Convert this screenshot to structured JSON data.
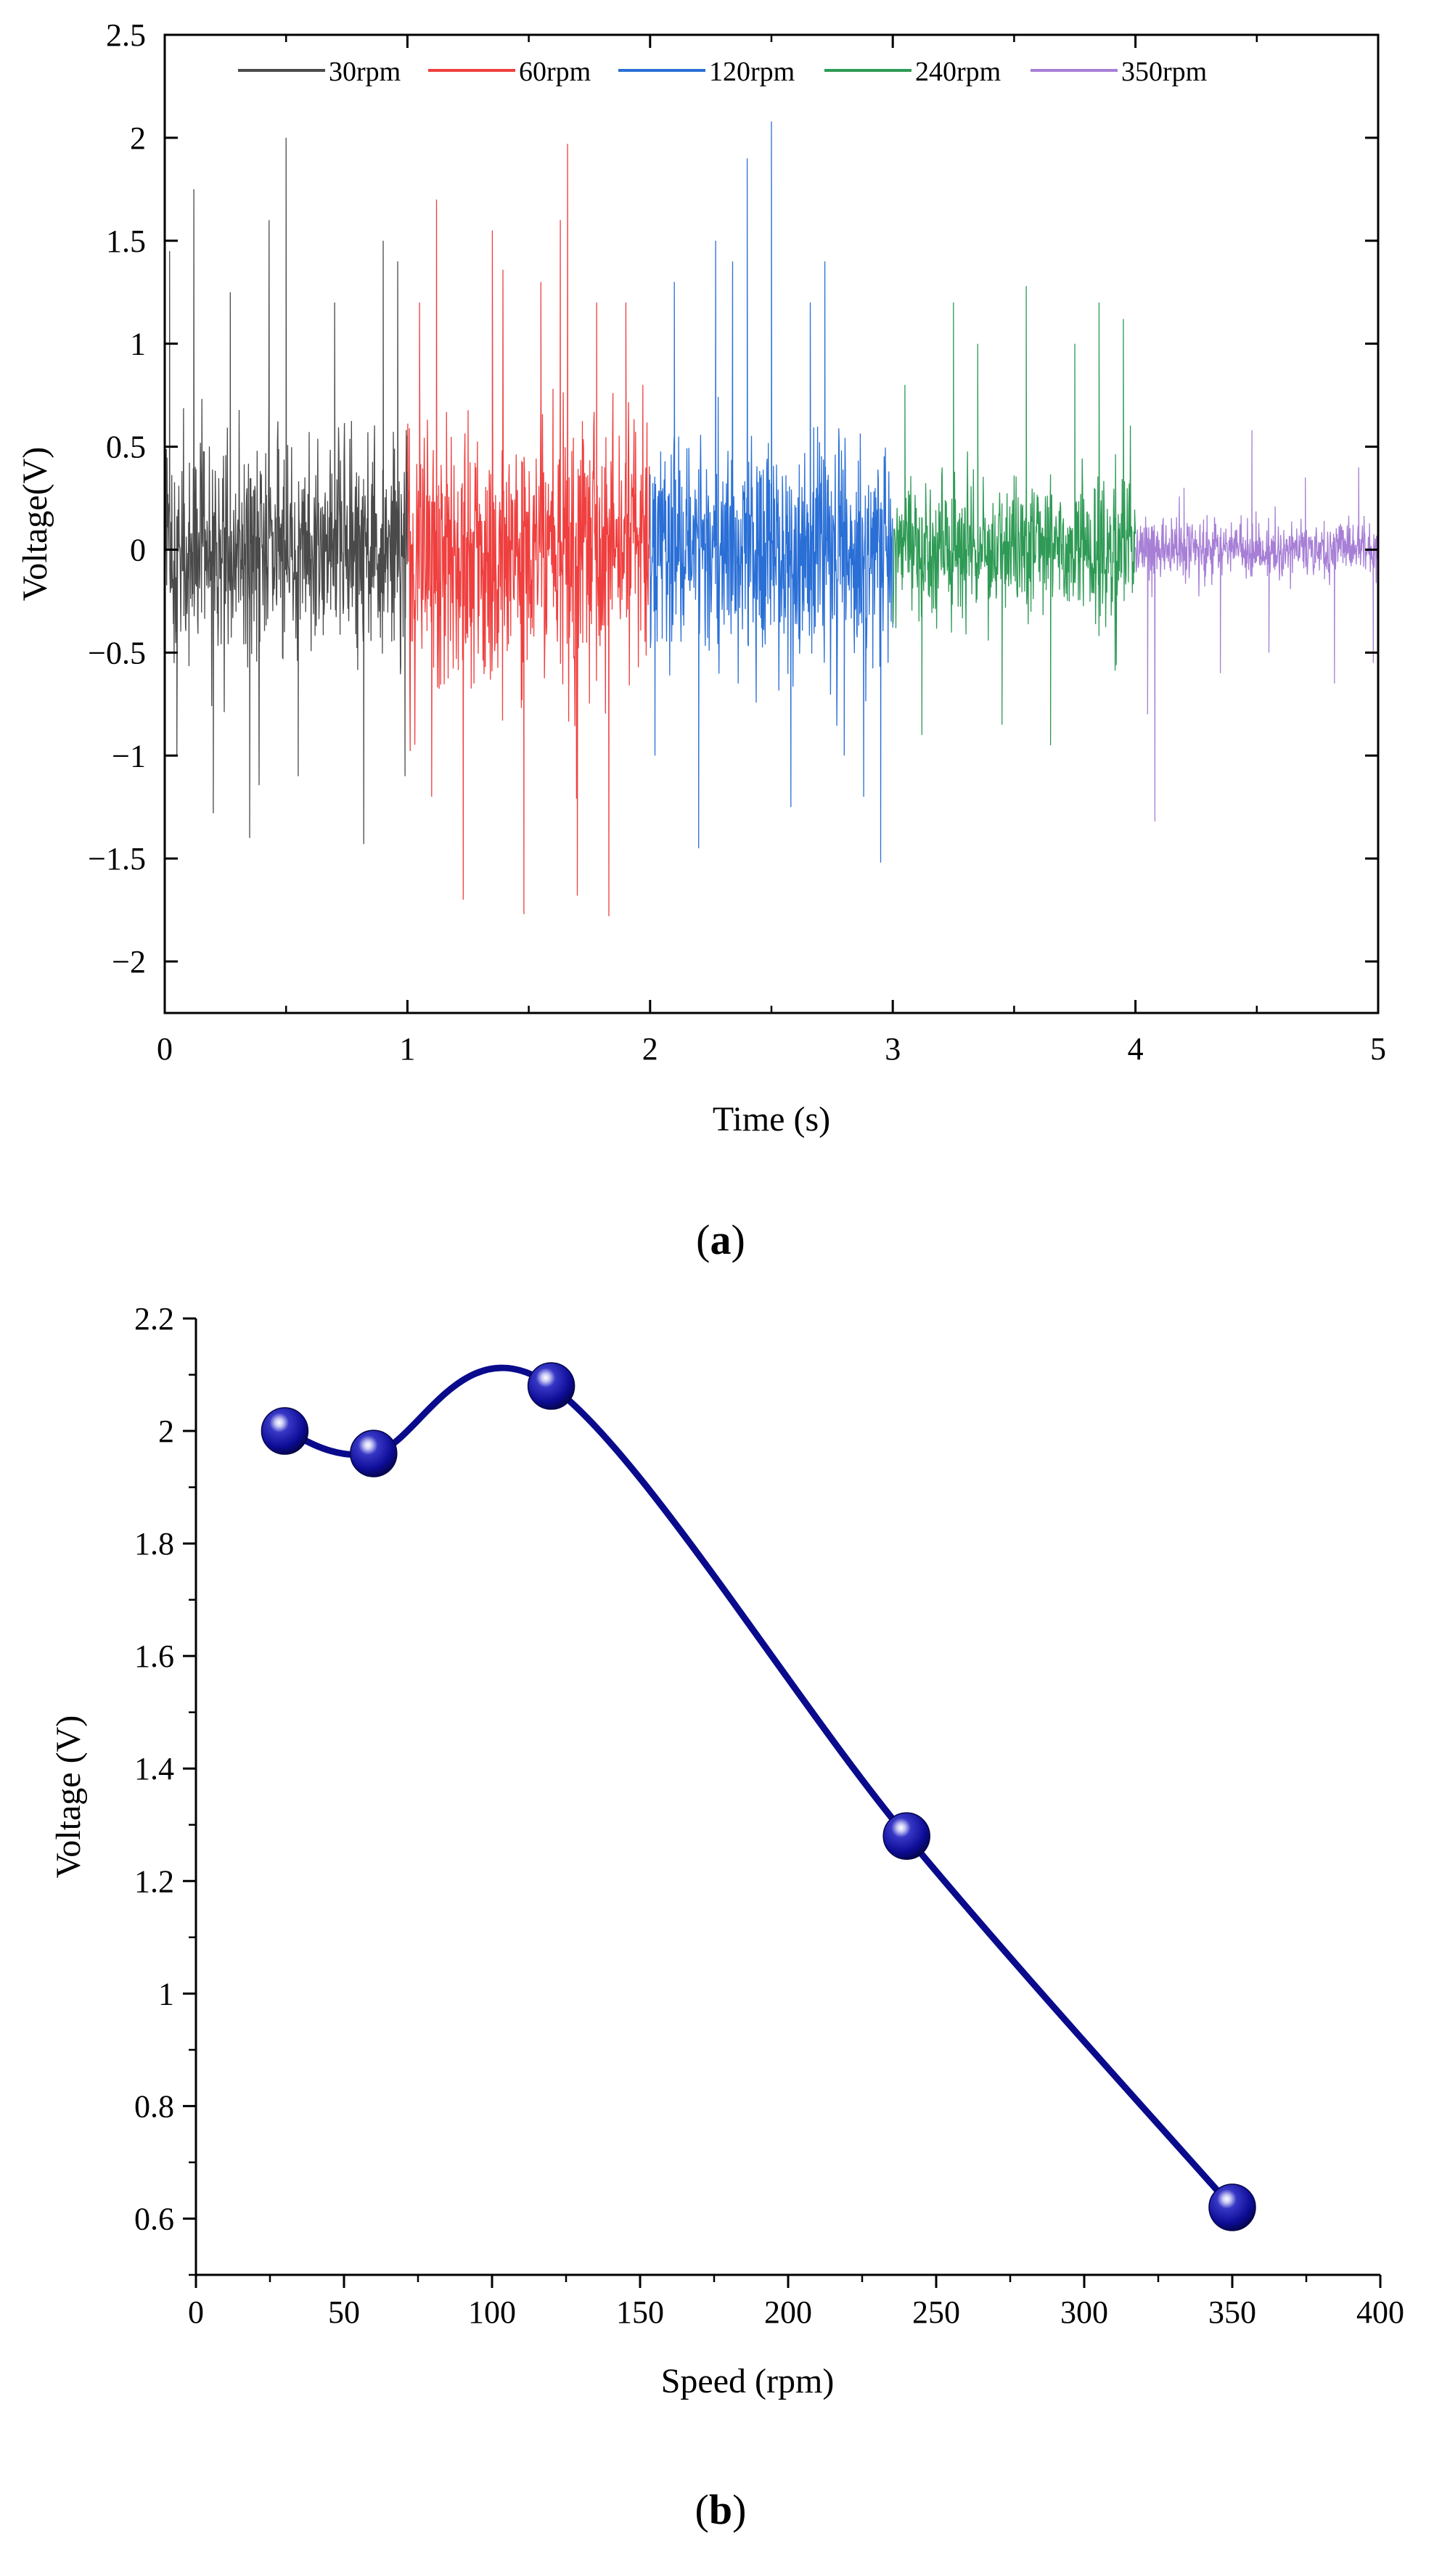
{
  "chart_data": [
    {
      "id": "a",
      "type": "line",
      "panel_label": "a",
      "title": "",
      "xlabel": "Time (s)",
      "ylabel": "Voltage(V)",
      "xlim": [
        0,
        5
      ],
      "ylim": [
        -2.25,
        2.5
      ],
      "xticks": [
        0,
        1,
        2,
        3,
        4,
        5
      ],
      "yticks": [
        -2,
        -1.5,
        -1,
        -0.5,
        0,
        0.5,
        1,
        1.5,
        2,
        2.5
      ],
      "legend_position": "top",
      "series": [
        {
          "name": "30rpm",
          "color": "#4a4a4a",
          "t_range": [
            0,
            1
          ],
          "envelope": {
            "typical_amplitude": 0.45,
            "min": -1.43,
            "max": 2.0
          },
          "peaks": [
            [
              0.02,
              1.45
            ],
            [
              0.05,
              -1.0
            ],
            [
              0.12,
              1.75
            ],
            [
              0.2,
              -1.28
            ],
            [
              0.27,
              1.25
            ],
            [
              0.35,
              -1.4
            ],
            [
              0.43,
              1.6
            ],
            [
              0.5,
              2.0
            ],
            [
              0.55,
              -1.1
            ],
            [
              0.7,
              1.2
            ],
            [
              0.82,
              -1.43
            ],
            [
              0.9,
              1.5
            ],
            [
              0.96,
              1.4
            ],
            [
              0.99,
              -1.1
            ]
          ]
        },
        {
          "name": "60rpm",
          "color": "#ef3f3f",
          "t_range": [
            1,
            2
          ],
          "envelope": {
            "typical_amplitude": 0.55,
            "min": -1.78,
            "max": 1.97
          },
          "peaks": [
            [
              1.05,
              1.2
            ],
            [
              1.1,
              -1.2
            ],
            [
              1.12,
              1.7
            ],
            [
              1.23,
              -1.7
            ],
            [
              1.35,
              1.55
            ],
            [
              1.48,
              -1.77
            ],
            [
              1.55,
              1.3
            ],
            [
              1.63,
              1.6
            ],
            [
              1.66,
              1.97
            ],
            [
              1.7,
              -1.68
            ],
            [
              1.78,
              1.2
            ],
            [
              1.83,
              -1.78
            ],
            [
              1.9,
              1.2
            ],
            [
              1.97,
              0.8
            ]
          ]
        },
        {
          "name": "120rpm",
          "color": "#2a6fd6",
          "t_range": [
            2,
            3
          ],
          "envelope": {
            "typical_amplitude": 0.45,
            "min": -1.52,
            "max": 2.08
          },
          "peaks": [
            [
              2.02,
              -1.0
            ],
            [
              2.1,
              1.3
            ],
            [
              2.2,
              -1.45
            ],
            [
              2.27,
              1.5
            ],
            [
              2.34,
              1.4
            ],
            [
              2.4,
              1.9
            ],
            [
              2.5,
              2.08
            ],
            [
              2.58,
              -1.25
            ],
            [
              2.66,
              1.2
            ],
            [
              2.72,
              1.4
            ],
            [
              2.8,
              -1.0
            ],
            [
              2.88,
              -1.2
            ],
            [
              2.95,
              -1.52
            ]
          ]
        },
        {
          "name": "240rpm",
          "color": "#2e9a55",
          "t_range": [
            3,
            4
          ],
          "envelope": {
            "typical_amplitude": 0.3,
            "min": -1.0,
            "max": 1.28
          },
          "peaks": [
            [
              3.05,
              0.8
            ],
            [
              3.12,
              -0.9
            ],
            [
              3.25,
              1.2
            ],
            [
              3.35,
              1.0
            ],
            [
              3.45,
              -0.85
            ],
            [
              3.55,
              1.28
            ],
            [
              3.65,
              -0.95
            ],
            [
              3.75,
              1.0
            ],
            [
              3.85,
              1.2
            ],
            [
              3.95,
              1.12
            ]
          ]
        },
        {
          "name": "350rpm",
          "color": "#a77fd6",
          "t_range": [
            4,
            5
          ],
          "envelope": {
            "typical_amplitude": 0.12,
            "min": -1.32,
            "max": 0.6
          },
          "peaks": [
            [
              4.05,
              -0.8
            ],
            [
              4.08,
              -1.32
            ],
            [
              4.2,
              0.3
            ],
            [
              4.35,
              -0.6
            ],
            [
              4.48,
              0.58
            ],
            [
              4.55,
              -0.5
            ],
            [
              4.7,
              0.35
            ],
            [
              4.82,
              -0.65
            ],
            [
              4.92,
              0.4
            ],
            [
              4.98,
              -0.55
            ]
          ]
        }
      ]
    },
    {
      "id": "b",
      "type": "line",
      "panel_label": "b",
      "title": "",
      "xlabel": "Speed (rpm)",
      "ylabel": "Voltage (V)",
      "xlim": [
        0,
        400
      ],
      "ylim": [
        0.5,
        2.2
      ],
      "xticks": [
        0,
        50,
        100,
        150,
        200,
        250,
        300,
        350,
        400
      ],
      "yticks": [
        0.6,
        0.8,
        1,
        1.2,
        1.4,
        1.6,
        1.8,
        2,
        2.2
      ],
      "series": [
        {
          "name": "Voltage",
          "color": "#0a0a8c",
          "smooth": true,
          "marker": "sphere",
          "x": [
            30,
            60,
            120,
            240,
            350
          ],
          "y": [
            2.0,
            1.96,
            2.08,
            1.28,
            0.62
          ]
        }
      ]
    }
  ]
}
